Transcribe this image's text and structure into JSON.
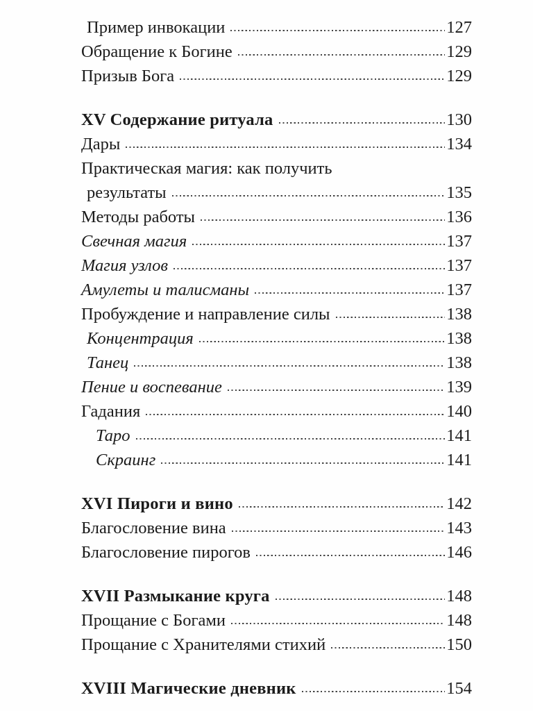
{
  "page": {
    "background_color": "#fefefe",
    "text_color": "#1b1b1b",
    "leader_dot_color": "#454545"
  },
  "toc": {
    "entries": [
      {
        "label": "Пример инвокации",
        "page": "127",
        "style": "normal",
        "indent": 1,
        "section_gap": false
      },
      {
        "label": "Обращение к Богине",
        "page": "129",
        "style": "normal",
        "indent": 0,
        "section_gap": false
      },
      {
        "label": "Призыв Бога",
        "page": "129",
        "style": "normal",
        "indent": 0,
        "section_gap": false
      },
      {
        "label": "XV Содержание ритуала",
        "page": "130",
        "style": "bold",
        "indent": 0,
        "section_gap": true
      },
      {
        "label": "Дары",
        "page": "134",
        "style": "normal",
        "indent": 0,
        "section_gap": false
      },
      {
        "label": "Практическая магия: как получить",
        "page": null,
        "style": "normal",
        "indent": 0,
        "section_gap": false
      },
      {
        "label": "результаты",
        "page": "135",
        "style": "normal",
        "indent": 1,
        "section_gap": false
      },
      {
        "label": "Методы работы",
        "page": "136",
        "style": "normal",
        "indent": 0,
        "section_gap": false
      },
      {
        "label": "Свечная магия",
        "page": "137",
        "style": "italic",
        "indent": 0,
        "section_gap": false
      },
      {
        "label": "Магия узлов",
        "page": "137",
        "style": "italic",
        "indent": 0,
        "section_gap": false
      },
      {
        "label": "Амулеты и талисманы",
        "page": "137",
        "style": "italic",
        "indent": 0,
        "section_gap": false
      },
      {
        "label": "Пробуждение и направление силы",
        "page": "138",
        "style": "normal",
        "indent": 0,
        "section_gap": false
      },
      {
        "label": "Концентрация",
        "page": "138",
        "style": "italic",
        "indent": 1,
        "section_gap": false
      },
      {
        "label": "Танец",
        "page": "138",
        "style": "italic",
        "indent": 1,
        "section_gap": false
      },
      {
        "label": "Пение и воспевание",
        "page": "139",
        "style": "italic",
        "indent": 0,
        "section_gap": false
      },
      {
        "label": "Гадания",
        "page": "140",
        "style": "normal",
        "indent": 0,
        "section_gap": false
      },
      {
        "label": "Таро",
        "page": "141",
        "style": "italic",
        "indent": 2,
        "section_gap": false
      },
      {
        "label": "Скраинг",
        "page": "141",
        "style": "italic",
        "indent": 2,
        "section_gap": false
      },
      {
        "label": "XVI Пироги и вино",
        "page": "142",
        "style": "bold",
        "indent": 0,
        "section_gap": true
      },
      {
        "label": "Благословение вина",
        "page": "143",
        "style": "normal",
        "indent": 0,
        "section_gap": false
      },
      {
        "label": "Благословение пирогов",
        "page": "146",
        "style": "normal",
        "indent": 0,
        "section_gap": false
      },
      {
        "label": "XVII Размыкание круга",
        "page": "148",
        "style": "bold",
        "indent": 0,
        "section_gap": true
      },
      {
        "label": "Прощание с Богами",
        "page": "148",
        "style": "normal",
        "indent": 0,
        "section_gap": false
      },
      {
        "label": "Прощание с Хранителями стихий",
        "page": "150",
        "style": "normal",
        "indent": 0,
        "section_gap": false
      },
      {
        "label": "XVIII Магические дневник",
        "page": "154",
        "style": "bold",
        "indent": 0,
        "section_gap": true
      }
    ]
  }
}
